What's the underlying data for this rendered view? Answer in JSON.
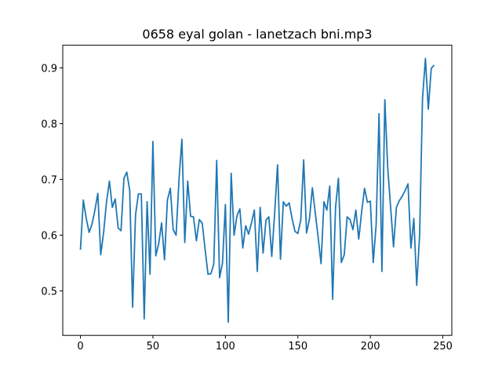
{
  "chart_data": {
    "type": "line",
    "title": "0658 eyal golan - lanetzach bni.mp3",
    "x": [
      0,
      2,
      4,
      6,
      8,
      10,
      12,
      14,
      16,
      18,
      20,
      22,
      24,
      26,
      28,
      30,
      32,
      34,
      36,
      38,
      40,
      42,
      44,
      46,
      48,
      50,
      52,
      54,
      56,
      58,
      60,
      62,
      64,
      66,
      68,
      70,
      72,
      74,
      76,
      78,
      80,
      82,
      84,
      86,
      88,
      90,
      92,
      94,
      96,
      98,
      100,
      102,
      104,
      106,
      108,
      110,
      112,
      114,
      116,
      118,
      120,
      122,
      124,
      126,
      128,
      130,
      132,
      134,
      136,
      138,
      140,
      142,
      144,
      146,
      148,
      150,
      152,
      154,
      156,
      158,
      160,
      162,
      164,
      166,
      168,
      170,
      172,
      174,
      176,
      178,
      180,
      182,
      184,
      186,
      188,
      190,
      192,
      194,
      196,
      198,
      200,
      202,
      204,
      206,
      208,
      210,
      212,
      214,
      216,
      218,
      220,
      222,
      224,
      226,
      228,
      230,
      232,
      234,
      236,
      238,
      240,
      242,
      244
    ],
    "values": [
      0.574,
      0.663,
      0.63,
      0.605,
      0.62,
      0.645,
      0.675,
      0.565,
      0.605,
      0.66,
      0.697,
      0.65,
      0.665,
      0.613,
      0.608,
      0.702,
      0.713,
      0.68,
      0.471,
      0.636,
      0.674,
      0.674,
      0.45,
      0.66,
      0.53,
      0.768,
      0.563,
      0.585,
      0.622,
      0.556,
      0.663,
      0.684,
      0.61,
      0.6,
      0.7,
      0.772,
      0.587,
      0.697,
      0.634,
      0.633,
      0.59,
      0.628,
      0.622,
      0.575,
      0.53,
      0.531,
      0.548,
      0.734,
      0.524,
      0.55,
      0.655,
      0.444,
      0.711,
      0.6,
      0.635,
      0.647,
      0.577,
      0.617,
      0.602,
      0.622,
      0.645,
      0.535,
      0.65,
      0.568,
      0.627,
      0.633,
      0.562,
      0.64,
      0.726,
      0.557,
      0.66,
      0.652,
      0.658,
      0.63,
      0.607,
      0.603,
      0.627,
      0.735,
      0.604,
      0.629,
      0.685,
      0.64,
      0.596,
      0.549,
      0.66,
      0.645,
      0.688,
      0.485,
      0.65,
      0.702,
      0.551,
      0.565,
      0.633,
      0.628,
      0.61,
      0.645,
      0.593,
      0.642,
      0.684,
      0.659,
      0.661,
      0.551,
      0.619,
      0.818,
      0.535,
      0.843,
      0.72,
      0.65,
      0.579,
      0.65,
      0.662,
      0.67,
      0.68,
      0.692,
      0.577,
      0.63,
      0.51,
      0.6,
      0.845,
      0.917,
      0.826,
      0.899,
      0.905
    ],
    "color": "#1f77b4",
    "xlim": [
      -12.2,
      256.2
    ],
    "xticks": [
      0,
      50,
      100,
      150,
      200,
      250
    ],
    "ylim": [
      0.4203,
      0.9407
    ],
    "yticks": [
      0.5,
      0.6,
      0.7,
      0.8,
      0.9
    ]
  }
}
